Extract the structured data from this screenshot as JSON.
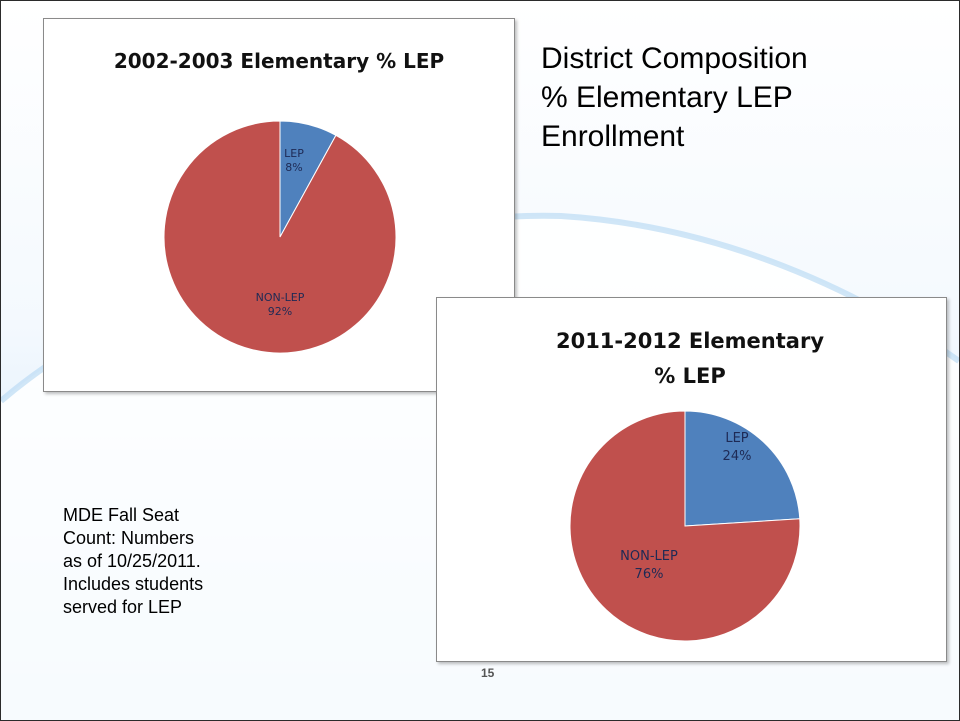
{
  "slide": {
    "title_lines": [
      "District Composition",
      "% Elementary LEP",
      "Enrollment"
    ],
    "note_lines": [
      "MDE Fall Seat",
      "Count: Numbers",
      "as of 10/25/2011.",
      "Includes students",
      "served for LEP"
    ],
    "page_number": "15"
  },
  "colors": {
    "lep": "#4f81bd",
    "non_lep": "#c0504d"
  },
  "chart_data": [
    {
      "type": "pie",
      "title": "2002-2003 Elementary % LEP",
      "categories": [
        "LEP",
        "NON-LEP"
      ],
      "values": [
        8,
        92
      ],
      "value_labels": [
        "8%",
        "92%"
      ]
    },
    {
      "type": "pie",
      "title_lines": [
        "2011-2012 Elementary",
        "% LEP"
      ],
      "categories": [
        "LEP",
        "NON-LEP"
      ],
      "values": [
        24,
        76
      ],
      "value_labels": [
        "24%",
        "76%"
      ]
    }
  ]
}
